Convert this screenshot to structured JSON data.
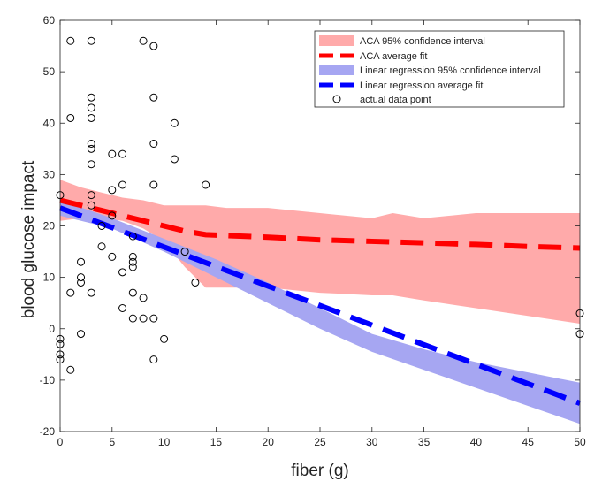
{
  "chart_data": {
    "type": "scatter",
    "title": "",
    "xlabel": "fiber (g)",
    "ylabel": "blood glucose impact",
    "xlim": [
      0,
      50
    ],
    "ylim": [
      -20,
      60
    ],
    "xticks": [
      0,
      5,
      10,
      15,
      20,
      25,
      30,
      35,
      40,
      45,
      50
    ],
    "yticks": [
      -20,
      -10,
      0,
      10,
      20,
      30,
      40,
      50,
      60
    ],
    "xtick_labels": [
      "0",
      "5",
      "10",
      "15",
      "20",
      "25",
      "30",
      "35",
      "40",
      "45",
      "50"
    ],
    "ytick_labels": [
      "-20",
      "-10",
      "0",
      "10",
      "20",
      "30",
      "40",
      "50",
      "60"
    ],
    "grid": false,
    "legend_position": "top-right",
    "legend": [
      "ACA 95% confidence interval",
      "ACA average fit",
      "Linear regression 95% confidence interval",
      "Linear regression average fit",
      "actual data point"
    ],
    "colors": {
      "aca_band": "#ffaaaa",
      "aca_line": "#ff0000",
      "lr_band": "#a6a6f2",
      "lr_line": "#0000ff",
      "points": "#000000"
    },
    "series": [
      {
        "name": "ACA 95% confidence interval",
        "type": "band",
        "x": [
          0,
          2,
          4,
          6,
          8,
          10,
          12,
          14,
          16,
          18,
          20,
          25,
          30,
          32,
          35,
          40,
          45,
          50
        ],
        "upper": [
          29,
          27.5,
          26.5,
          25.5,
          25,
          24,
          24,
          24,
          23.5,
          23.5,
          23.5,
          22.5,
          21.5,
          22.5,
          21.5,
          22.5,
          22.5,
          22.5
        ],
        "lower": [
          21,
          21.5,
          21.5,
          21,
          19.5,
          17,
          12,
          8,
          8,
          8,
          8,
          7,
          6.5,
          6.5,
          5.5,
          4,
          2.5,
          1
        ]
      },
      {
        "name": "ACA average fit",
        "type": "line",
        "x": [
          0,
          2,
          5,
          8,
          10,
          12,
          14,
          20,
          25,
          30,
          35,
          40,
          45,
          50
        ],
        "y": [
          25,
          24,
          22.5,
          21,
          20,
          19,
          18.3,
          17.8,
          17.3,
          17,
          16.7,
          16.4,
          16,
          15.7
        ]
      },
      {
        "name": "Linear regression 95% confidence interval",
        "type": "band",
        "x": [
          0,
          5,
          10,
          15,
          20,
          25,
          30,
          35,
          40,
          45,
          50
        ],
        "upper": [
          25,
          21.5,
          17.5,
          13.5,
          9,
          4,
          -1,
          -4,
          -6.5,
          -8.5,
          -10.5
        ],
        "lower": [
          22,
          19.5,
          15,
          10,
          5,
          0,
          -4.5,
          -8,
          -11.5,
          -15,
          -18.5
        ]
      },
      {
        "name": "Linear regression average fit",
        "type": "line",
        "x": [
          0,
          50
        ],
        "y": [
          23.5,
          -14.5
        ]
      },
      {
        "name": "actual data point",
        "type": "scatter",
        "points": [
          [
            0,
            26
          ],
          [
            0,
            -2
          ],
          [
            0,
            -3
          ],
          [
            0,
            -5
          ],
          [
            0,
            -6
          ],
          [
            1,
            56
          ],
          [
            1,
            41
          ],
          [
            1,
            7
          ],
          [
            1,
            -8
          ],
          [
            2,
            13
          ],
          [
            2,
            10
          ],
          [
            2,
            9
          ],
          [
            2,
            -1
          ],
          [
            3,
            56
          ],
          [
            3,
            45
          ],
          [
            3,
            43
          ],
          [
            3,
            41
          ],
          [
            3,
            36
          ],
          [
            3,
            35
          ],
          [
            3,
            32
          ],
          [
            3,
            26
          ],
          [
            3,
            24
          ],
          [
            3,
            7
          ],
          [
            4,
            20
          ],
          [
            4,
            16
          ],
          [
            5,
            34
          ],
          [
            5,
            27
          ],
          [
            5,
            22
          ],
          [
            5,
            14
          ],
          [
            6,
            34
          ],
          [
            6,
            28
          ],
          [
            6,
            11
          ],
          [
            6,
            4
          ],
          [
            7,
            18
          ],
          [
            7,
            14
          ],
          [
            7,
            13
          ],
          [
            7,
            12
          ],
          [
            7,
            7
          ],
          [
            7,
            2
          ],
          [
            8,
            56
          ],
          [
            8,
            6
          ],
          [
            8,
            2
          ],
          [
            9,
            55
          ],
          [
            9,
            45
          ],
          [
            9,
            36
          ],
          [
            9,
            28
          ],
          [
            9,
            2
          ],
          [
            9,
            -6
          ],
          [
            10,
            -2
          ],
          [
            11,
            40
          ],
          [
            11,
            33
          ],
          [
            12,
            15
          ],
          [
            13,
            9
          ],
          [
            14,
            28
          ],
          [
            50,
            3
          ],
          [
            50,
            -1
          ]
        ]
      }
    ]
  }
}
